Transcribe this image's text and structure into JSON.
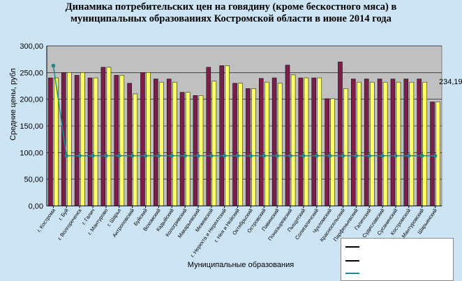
{
  "title_line1": "Динамика потребительских цен на говядину (кроме бескостного мяса)   в",
  "title_line2": "муниципальных образованиях Костромской области в июне 2014 года",
  "annotation": "234,19",
  "chart_data": {
    "type": "bar",
    "ylabel": "Средние цены, рубл",
    "xlabel": "Муниципальные образования",
    "ylim": [
      0,
      300
    ],
    "yticks": [
      "0,00",
      "50,00",
      "100,00",
      "150,00",
      "200,00",
      "250,00",
      "300,00"
    ],
    "grid": true,
    "categories": [
      "г. Кострома",
      "г. Буй",
      "г. Волгореченск",
      "г. Галич",
      "г. Мантурово",
      "г. Шарья",
      "Антроповский",
      "Буйский",
      "Вохомский",
      "Кадыйский",
      "Кологривский",
      "Макарьевский",
      "Межевской",
      "г. Нерехта и Нерехтский",
      "г. Нея и Нейский",
      "Октябрьский",
      "Островский",
      "Павинский",
      "Поназыревский",
      "Пыщугский",
      "Солигаличский",
      "Чухломский",
      "Красносельский",
      "Парфеньевский",
      "Галичский",
      "Судиславский",
      "Сусанинский",
      "Костромской",
      "Мантуровский",
      "Шарьинский"
    ],
    "series": [
      {
        "values": [
          240,
          250,
          245,
          240,
          260,
          245,
          230,
          250,
          238,
          238,
          213,
          207,
          260,
          263,
          230,
          220,
          239,
          240,
          264,
          240,
          240,
          201,
          270,
          238,
          238,
          238,
          238,
          238,
          238,
          195
        ]
      },
      {
        "values": [
          240,
          250,
          250,
          240,
          260,
          245,
          210,
          250,
          232,
          232,
          213,
          207,
          234,
          263,
          230,
          220,
          232,
          230,
          246,
          240,
          240,
          201,
          220,
          232,
          232,
          232,
          232,
          232,
          232,
          195
        ]
      },
      {
        "values": [
          263,
          94,
          94,
          94,
          94,
          94,
          94,
          94,
          94,
          94,
          94,
          94,
          94,
          94,
          94,
          94,
          94,
          94,
          94,
          94,
          94,
          94,
          94,
          94,
          94,
          94,
          94,
          94,
          94,
          94
        ]
      }
    ],
    "colors": {
      "bar1": "#7a1f4a",
      "bar2": "#ffff66",
      "line": "#1a8a8a",
      "marker": "#1a8a8a",
      "plot_bg": "#c0c0c0"
    }
  }
}
